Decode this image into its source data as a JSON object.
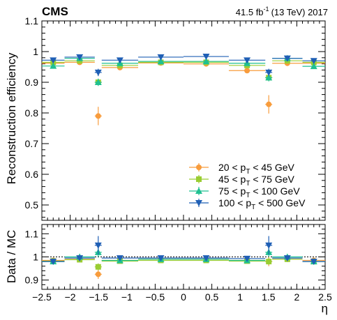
{
  "header": {
    "experiment": "CMS",
    "lumi": "41.5 fb",
    "lumi_sup": "-1",
    "energy": "(13 TeV) 2017"
  },
  "chart_data": {
    "type": "scatter",
    "x_bins": [
      [
        -2.5,
        -2.1
      ],
      [
        -2.1,
        -1.566
      ],
      [
        -1.566,
        -1.444
      ],
      [
        -1.444,
        -0.8
      ],
      [
        -0.8,
        0.0
      ],
      [
        0.0,
        0.8
      ],
      [
        0.8,
        1.444
      ],
      [
        1.444,
        1.566
      ],
      [
        1.566,
        2.1
      ],
      [
        2.1,
        2.5
      ]
    ],
    "x_centers": [
      -2.3,
      -1.833,
      -1.505,
      -1.122,
      -0.4,
      0.4,
      1.122,
      1.505,
      1.833,
      2.3
    ],
    "xlabel": "η",
    "xlim": [
      -2.5,
      2.5
    ],
    "xticks": [
      -2.5,
      -2,
      -1.5,
      -1,
      -0.5,
      0,
      0.5,
      1,
      1.5,
      2,
      2.5
    ],
    "top": {
      "ylabel": "Reconstruction efficiency",
      "ylim": [
        0.45,
        1.1
      ],
      "yticks": [
        0.5,
        0.6,
        0.7,
        0.8,
        0.9,
        1,
        1.1
      ],
      "series": [
        {
          "name": "20 < p_T < 45 GeV",
          "color": "#f89c3c",
          "marker": "circle",
          "values": [
            0.962,
            0.965,
            0.79,
            0.948,
            0.963,
            0.96,
            0.938,
            0.828,
            0.962,
            0.962
          ],
          "errors": [
            0.006,
            0.005,
            0.03,
            0.004,
            0.003,
            0.003,
            0.004,
            0.03,
            0.005,
            0.006
          ]
        },
        {
          "name": "45 < p_T < 75 GeV",
          "color": "#9acd32",
          "marker": "square",
          "values": [
            0.965,
            0.97,
            0.9,
            0.955,
            0.965,
            0.965,
            0.955,
            0.915,
            0.97,
            0.965
          ],
          "errors": [
            0.006,
            0.005,
            0.01,
            0.004,
            0.003,
            0.003,
            0.004,
            0.01,
            0.005,
            0.006
          ]
        },
        {
          "name": "75 < p_T < 100 GeV",
          "color": "#1fc091",
          "marker": "triangle-up",
          "values": [
            0.953,
            0.978,
            0.9,
            0.962,
            0.968,
            0.968,
            0.962,
            0.915,
            0.978,
            0.952
          ],
          "errors": [
            0.007,
            0.006,
            0.012,
            0.005,
            0.004,
            0.004,
            0.005,
            0.012,
            0.006,
            0.007
          ]
        },
        {
          "name": "100 < p_T < 500 GeV",
          "color": "#1f5fb5",
          "marker": "triangle-down",
          "values": [
            0.972,
            0.982,
            0.932,
            0.972,
            0.982,
            0.984,
            0.972,
            0.932,
            0.978,
            0.97
          ],
          "errors": [
            0.006,
            0.005,
            0.012,
            0.004,
            0.003,
            0.003,
            0.004,
            0.012,
            0.005,
            0.006
          ]
        }
      ]
    },
    "bottom": {
      "ylabel": "Data / MC",
      "ylim": [
        0.86,
        1.14
      ],
      "yticks": [
        0.9,
        1,
        1.1
      ],
      "reference_line": 1.0,
      "series": [
        {
          "name": "20 < p_T < 45 GeV",
          "values": [
            0.985,
            0.99,
            0.925,
            0.985,
            0.99,
            0.99,
            0.985,
            0.98,
            0.99,
            0.985
          ],
          "errors": [
            0.01,
            0.01,
            0.02,
            0.006,
            0.005,
            0.005,
            0.006,
            0.02,
            0.01,
            0.01
          ]
        },
        {
          "name": "45 < p_T < 75 GeV",
          "values": [
            0.982,
            0.988,
            0.957,
            0.982,
            0.985,
            0.985,
            0.982,
            0.98,
            0.99,
            0.98
          ],
          "errors": [
            0.01,
            0.01,
            0.015,
            0.006,
            0.005,
            0.005,
            0.006,
            0.015,
            0.01,
            0.01
          ]
        },
        {
          "name": "75 < p_T < 100 GeV",
          "values": [
            0.98,
            1.0,
            1.02,
            0.985,
            0.99,
            0.99,
            0.985,
            1.02,
            1.0,
            0.98
          ],
          "errors": [
            0.012,
            0.01,
            0.02,
            0.007,
            0.006,
            0.006,
            0.007,
            0.02,
            0.01,
            0.012
          ]
        },
        {
          "name": "100 < p_T < 500 GeV",
          "values": [
            0.98,
            0.995,
            1.05,
            0.995,
            0.995,
            0.995,
            0.993,
            1.05,
            0.995,
            0.98
          ],
          "errors": [
            0.01,
            0.01,
            0.04,
            0.006,
            0.005,
            0.005,
            0.006,
            0.04,
            0.01,
            0.01
          ]
        }
      ]
    },
    "legend_position": "bottom-right"
  }
}
